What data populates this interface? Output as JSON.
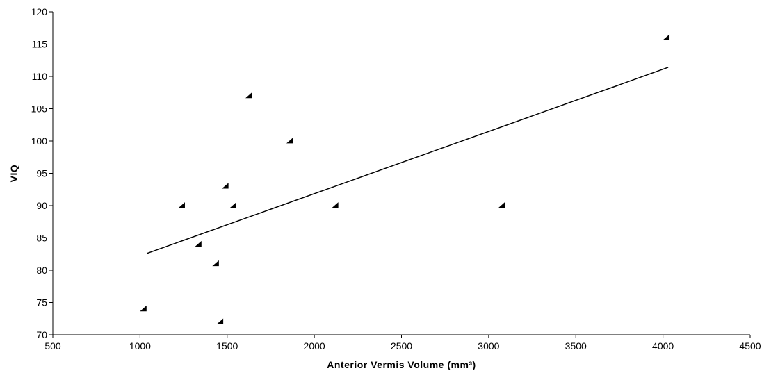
{
  "chart_data": {
    "type": "scatter",
    "title": "",
    "xlabel": "Anterior Vermis Volume (mm³)",
    "ylabel": "VIQ",
    "xlim": [
      500,
      4500
    ],
    "ylim": [
      70,
      120
    ],
    "xticks": [
      500,
      1000,
      1500,
      2000,
      2500,
      3000,
      3500,
      4000,
      4500
    ],
    "yticks": [
      70,
      75,
      80,
      85,
      90,
      95,
      100,
      105,
      110,
      115,
      120
    ],
    "grid": false,
    "legend": "none",
    "marker": "triangle",
    "marker_color": "#000000",
    "points": [
      {
        "x": 1020,
        "y": 74
      },
      {
        "x": 1240,
        "y": 90
      },
      {
        "x": 1335,
        "y": 84
      },
      {
        "x": 1435,
        "y": 81
      },
      {
        "x": 1460,
        "y": 72
      },
      {
        "x": 1490,
        "y": 93
      },
      {
        "x": 1535,
        "y": 90
      },
      {
        "x": 1625,
        "y": 107
      },
      {
        "x": 1860,
        "y": 100
      },
      {
        "x": 2120,
        "y": 90
      },
      {
        "x": 3075,
        "y": 90
      },
      {
        "x": 4020,
        "y": 116
      }
    ],
    "trendline": {
      "type": "linear",
      "x": [
        1040,
        4030
      ],
      "y": [
        82.6,
        111.4
      ],
      "color": "#000000"
    }
  }
}
